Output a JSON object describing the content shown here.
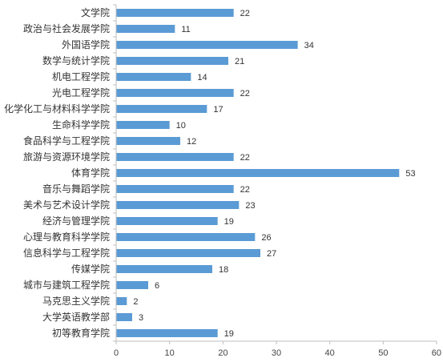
{
  "chart_data": {
    "type": "bar",
    "orientation": "horizontal",
    "categories": [
      "文学院",
      "政治与社会发展学院",
      "外国语学院",
      "数学与统计学院",
      "机电工程学院",
      "光电工程学院",
      "化学化工与材料科学学院",
      "生命科学学院",
      "食品科学与工程学院",
      "旅游与资源环境学院",
      "体育学院",
      "音乐与舞蹈学院",
      "美术与艺术设计学院",
      "经济与管理学院",
      "心理与教育科学学院",
      "信息科学与工程学院",
      "传媒学院",
      "城市与建筑工程学院",
      "马克思主义学院",
      "大学英语教学部",
      "初等教育学院"
    ],
    "values": [
      22,
      11,
      34,
      21,
      14,
      22,
      17,
      10,
      12,
      22,
      53,
      22,
      23,
      19,
      26,
      27,
      18,
      6,
      2,
      3,
      19
    ],
    "xlim": [
      0,
      60
    ],
    "xticks": [
      "0",
      "10",
      "20",
      "30",
      "40",
      "50",
      "60"
    ],
    "grid": false,
    "legend": "none",
    "bar_color": "#5B9BD5",
    "data_labels": true
  }
}
